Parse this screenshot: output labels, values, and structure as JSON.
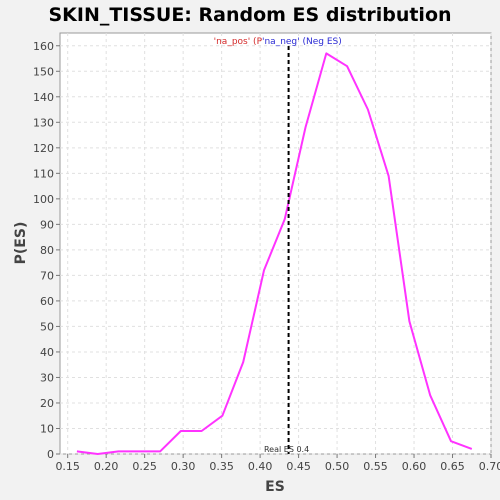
{
  "chart_data": {
    "type": "line",
    "title": "SKIN_TISSUE: Random ES distribution",
    "xlabel": "ES",
    "ylabel": "P(ES)",
    "xlim": [
      0.14,
      0.7
    ],
    "ylim": [
      0,
      165
    ],
    "xticks": [
      0.15,
      0.2,
      0.25,
      0.3,
      0.35,
      0.4,
      0.45,
      0.5,
      0.55,
      0.6,
      0.65,
      0.7
    ],
    "xtick_labels": [
      "0.15",
      "0.20",
      "0.25",
      "0.30",
      "0.35",
      "0.40",
      "0.45",
      "0.50",
      "0.55",
      "0.60",
      "0.65",
      "0.70"
    ],
    "yticks": [
      0,
      10,
      20,
      30,
      40,
      50,
      60,
      70,
      80,
      90,
      100,
      110,
      120,
      130,
      140,
      150,
      160
    ],
    "ytick_labels": [
      "0",
      "10",
      "20",
      "30",
      "40",
      "50",
      "60",
      "70",
      "80",
      "90",
      "100",
      "110",
      "120",
      "130",
      "140",
      "150",
      "160"
    ],
    "grid": true,
    "series": [
      {
        "color": "#ff33ff",
        "x": [
          0.162,
          0.189,
          0.216,
          0.243,
          0.27,
          0.297,
          0.324,
          0.351,
          0.378,
          0.405,
          0.432,
          0.459,
          0.486,
          0.513,
          0.54,
          0.567,
          0.594,
          0.621,
          0.648,
          0.675
        ],
        "y": [
          1,
          0,
          1,
          1,
          1,
          9,
          9,
          15,
          36,
          72,
          92,
          128,
          157,
          152,
          135,
          109,
          52,
          23,
          5,
          2
        ]
      }
    ],
    "marker": {
      "x": 0.437,
      "label": "Real ES 0.4",
      "color": "#000000"
    },
    "legend": {
      "position": "top-center",
      "pos_text": "'na_pos' (P",
      "neg_text": "'na_neg' (Neg ES)",
      "pos_color": "#d42a2a",
      "neg_color": "#2a2ad4"
    }
  }
}
